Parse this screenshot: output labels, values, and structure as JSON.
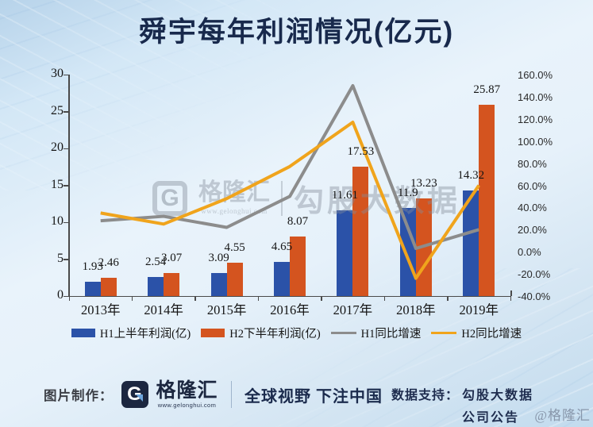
{
  "title": "舜宇每年利润情况(亿元)",
  "chart_data": {
    "type": "combo-bar-line",
    "title": "舜宇每年利润情况(亿元)",
    "categories": [
      "2013年",
      "2014年",
      "2015年",
      "2016年",
      "2017年",
      "2018年",
      "2019年"
    ],
    "bar_series": [
      {
        "name": "H1上半年利润(亿)",
        "color": "#2B52A8",
        "values": [
          1.93,
          2.54,
          3.09,
          4.65,
          11.61,
          11.9,
          14.32
        ],
        "labels": [
          "1.93",
          "2.54",
          "3.09",
          "4.65",
          "11.61",
          "11.9",
          "14.32"
        ]
      },
      {
        "name": "H2下半年利润(亿)",
        "color": "#D4541F",
        "values": [
          2.46,
          3.07,
          4.55,
          8.07,
          17.53,
          13.23,
          25.87
        ],
        "labels": [
          "2.46",
          "3.07",
          "4.55",
          "8.07",
          "17.53",
          "13.23",
          "25.87"
        ]
      }
    ],
    "line_series": [
      {
        "name": "H1同比增速",
        "color": "#8C8C8C",
        "values_pct": [
          28,
          32,
          22,
          50,
          150,
          3,
          20
        ]
      },
      {
        "name": "H2同比增速",
        "color": "#F0A41C",
        "values_pct": [
          35,
          25,
          48,
          77,
          117,
          -24,
          60
        ]
      }
    ],
    "left_axis": {
      "min": 0,
      "max": 30,
      "step": 5,
      "labels": [
        "0",
        "5",
        "10",
        "15",
        "20",
        "25",
        "30"
      ]
    },
    "right_axis": {
      "min": -40,
      "max": 160,
      "step": 20,
      "labels": [
        "160.0%",
        "140.0%",
        "120.0%",
        "100.0%",
        "80.0%",
        "60.0%",
        "40.0%",
        "20.0%",
        "0.0%",
        "-20.0%",
        "-40.0%"
      ]
    },
    "grid": false,
    "legend_position": "bottom"
  },
  "center_watermark": {
    "logo_letter": "G",
    "brand": "格隆汇",
    "url": "www.gelonghui.com",
    "text": "勾股大数据"
  },
  "footer": {
    "made_by_label": "图片制作：",
    "logo_letter": "G",
    "brand": "格隆汇",
    "brand_url": "www.gelonghui.com",
    "slogan": "全球视野 下注中国",
    "data_support_label": "数据支持：",
    "data_support_line1": "勾股大数据",
    "data_support_line2": "公司公告",
    "corner_watermark": "@格隆汇"
  }
}
